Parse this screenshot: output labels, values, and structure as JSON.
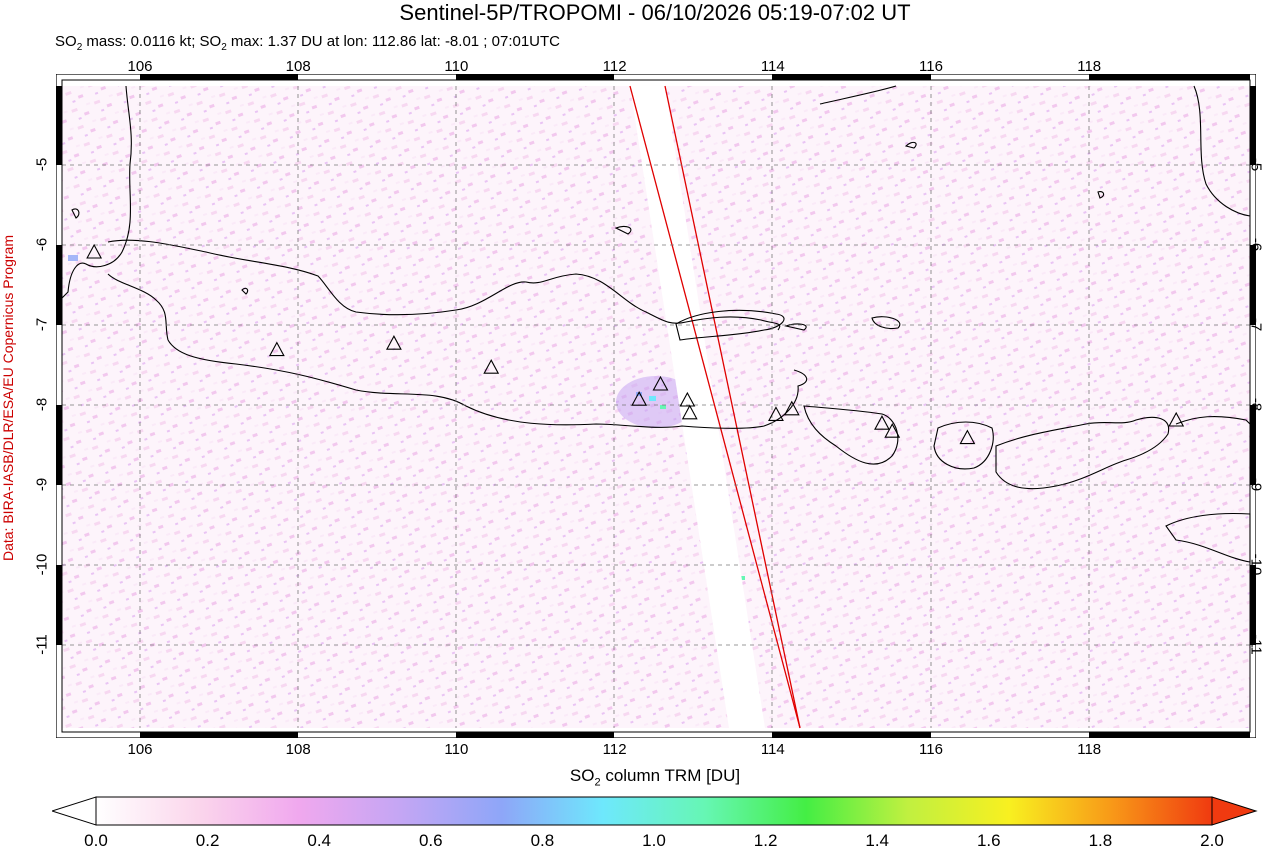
{
  "title": "Sentinel-5P/TROPOMI - 06/10/2026 05:19-07:02 UT",
  "subtitle": {
    "p1": "SO",
    "p2": " mass: 0.0116 kt; SO",
    "p3": " max: 1.37 DU at lon: 112.86 lat: -8.01 ; 07:01UTC",
    "sub": "2"
  },
  "credit": "Data: BIRA-IASB/DLR/ESA/EU Copernicus Program",
  "lon_ticks": [
    "106",
    "108",
    "110",
    "112",
    "114",
    "116",
    "118"
  ],
  "lat_ticks": [
    "-5",
    "-6",
    "-7",
    "-8",
    "-9",
    "-10",
    "-11"
  ],
  "colorbar": {
    "title_p1": "SO",
    "title_sub": "2",
    "title_p2": " column TRM [DU]",
    "ticks": [
      "0.0",
      "0.2",
      "0.4",
      "0.6",
      "0.8",
      "1.0",
      "1.2",
      "1.4",
      "1.6",
      "1.8",
      "2.0"
    ],
    "colors": [
      "#ffffff",
      "#fbd6ec",
      "#f0a8ee",
      "#c4a6f4",
      "#8ea6f8",
      "#6ee8fc",
      "#66f6b4",
      "#44ee44",
      "#c0f040",
      "#f8f020",
      "#f89a18",
      "#f03a10"
    ]
  },
  "map": {
    "lon_range": [
      104.9,
      119.9
    ],
    "lat_range": [
      -12.0,
      -3.7
    ],
    "volcano_icon": "triangle-marker-icon",
    "volcanoes": [
      {
        "lon": 105.42,
        "lat": -6.1
      },
      {
        "lon": 107.73,
        "lat": -7.32
      },
      {
        "lon": 109.21,
        "lat": -7.24
      },
      {
        "lon": 110.44,
        "lat": -7.54
      },
      {
        "lon": 112.31,
        "lat": -7.94
      },
      {
        "lon": 112.58,
        "lat": -7.75
      },
      {
        "lon": 112.92,
        "lat": -7.95
      },
      {
        "lon": 112.95,
        "lat": -8.11
      },
      {
        "lon": 114.04,
        "lat": -8.13
      },
      {
        "lon": 114.24,
        "lat": -8.06
      },
      {
        "lon": 115.38,
        "lat": -8.24
      },
      {
        "lon": 115.51,
        "lat": -8.34
      },
      {
        "lon": 116.46,
        "lat": -8.42
      },
      {
        "lon": 119.1,
        "lat": -8.2
      }
    ]
  }
}
